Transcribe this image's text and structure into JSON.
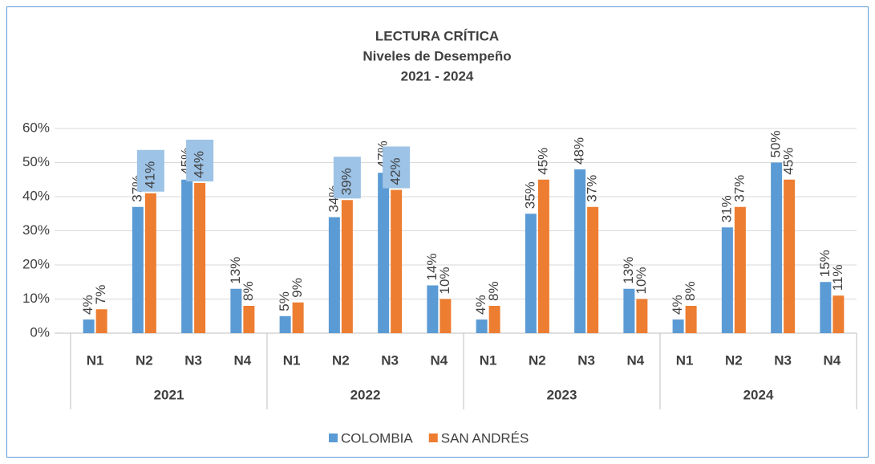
{
  "chart_data": {
    "type": "bar",
    "title": [
      "LECTURA CRÍTICA",
      "Niveles de Desempeño",
      "2021 - 2024"
    ],
    "categories": [
      "N1",
      "N2",
      "N3",
      "N4",
      "N1",
      "N2",
      "N3",
      "N4",
      "N1",
      "N2",
      "N3",
      "N4",
      "N1",
      "N2",
      "N3",
      "N4"
    ],
    "groups": [
      "2021",
      "2022",
      "2023",
      "2024"
    ],
    "series": [
      {
        "name": "COLOMBIA",
        "color": "#5b9bd5",
        "values": [
          4,
          37,
          45,
          13,
          5,
          34,
          47,
          14,
          4,
          35,
          48,
          13,
          4,
          31,
          50,
          15
        ],
        "value_labels": [
          "4%",
          "37%",
          "45%",
          "13%",
          "5%",
          "34%",
          "47%",
          "14%",
          "4%",
          "35%",
          "48%",
          "13%",
          "4%",
          "31%",
          "50%",
          "15%"
        ]
      },
      {
        "name": "SAN ANDRÉS",
        "color": "#ed7d31",
        "values": [
          7,
          41,
          44,
          8,
          9,
          39,
          42,
          10,
          8,
          45,
          37,
          10,
          8,
          37,
          45,
          11
        ],
        "value_labels": [
          "7%",
          "41%",
          "44%",
          "8%",
          "9%",
          "39%",
          "42%",
          "10%",
          "8%",
          "45%",
          "37%",
          "10%",
          "8%",
          "37%",
          "45%",
          "11%"
        ],
        "highlight": [
          1,
          2,
          5,
          6
        ],
        "highlight_color": "#9dc3e6"
      }
    ],
    "ylim": [
      0,
      60
    ],
    "yticks": [
      {
        "value": 0,
        "label": "0%"
      },
      {
        "value": 10,
        "label": "10%"
      },
      {
        "value": 20,
        "label": "20%"
      },
      {
        "value": 30,
        "label": "30%"
      },
      {
        "value": 40,
        "label": "40%"
      },
      {
        "value": 50,
        "label": "50%"
      },
      {
        "value": 60,
        "label": "60%"
      }
    ],
    "grid": true,
    "legend": "bottom"
  }
}
